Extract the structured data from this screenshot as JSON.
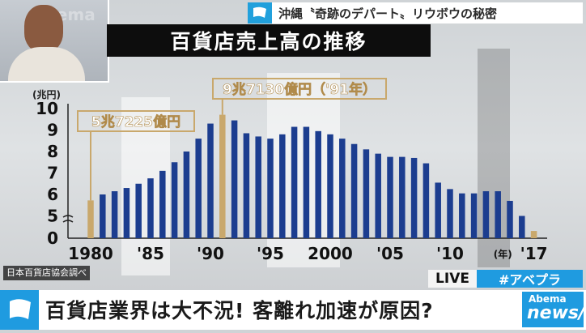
{
  "top_ticker": {
    "text": "沖縄〝奇跡のデパート〟リウボウの秘密"
  },
  "pip_overlay_text": "Abema",
  "chart_data": {
    "type": "bar",
    "title": "百貨店売上高の推移",
    "ylabel": "(兆円)",
    "xlabel": "(年)",
    "ylim": [
      4,
      10
    ],
    "y_ticks": [
      "10",
      "9",
      "8",
      "7",
      "6",
      "5",
      "0"
    ],
    "axis_break": true,
    "x_tick_labels": [
      "1980",
      "'85",
      "'90",
      "'95",
      "2000",
      "'05",
      "'10",
      "'17"
    ],
    "years": [
      1980,
      1981,
      1982,
      1983,
      1984,
      1985,
      1986,
      1987,
      1988,
      1989,
      1990,
      1991,
      1992,
      1993,
      1994,
      1995,
      1996,
      1997,
      1998,
      1999,
      2000,
      2001,
      2002,
      2003,
      2004,
      2005,
      2006,
      2007,
      2008,
      2009,
      2010,
      2011,
      2012,
      2013,
      2014,
      2015,
      2016,
      2017
    ],
    "values": [
      5.7225,
      6.0,
      6.15,
      6.3,
      6.5,
      6.75,
      7.1,
      7.5,
      8.0,
      8.6,
      9.3,
      9.713,
      9.45,
      8.85,
      8.7,
      8.6,
      8.8,
      9.15,
      9.15,
      8.95,
      8.8,
      8.6,
      8.35,
      8.1,
      7.9,
      7.75,
      7.75,
      7.7,
      7.45,
      6.55,
      6.25,
      6.05,
      6.05,
      6.15,
      6.15,
      5.7,
      5.0,
      4.3
    ],
    "highlighted": [
      1980,
      1991,
      2017
    ],
    "annotations": [
      {
        "year": 1980,
        "text": "5兆7225億円"
      },
      {
        "year": 1991,
        "text": "9兆7130億円（'91年）"
      }
    ],
    "colors": {
      "bar": "#1c3d8f",
      "highlight": "#c9a86c"
    }
  },
  "source_note": "日本百貨店協会調べ",
  "live_badge": "LIVE",
  "hashtag": "#アベプラ",
  "headline": "百貨店業界は大不況! 客離れ加速が原因?",
  "logo": {
    "line1": "Abema",
    "line2": "news/"
  }
}
